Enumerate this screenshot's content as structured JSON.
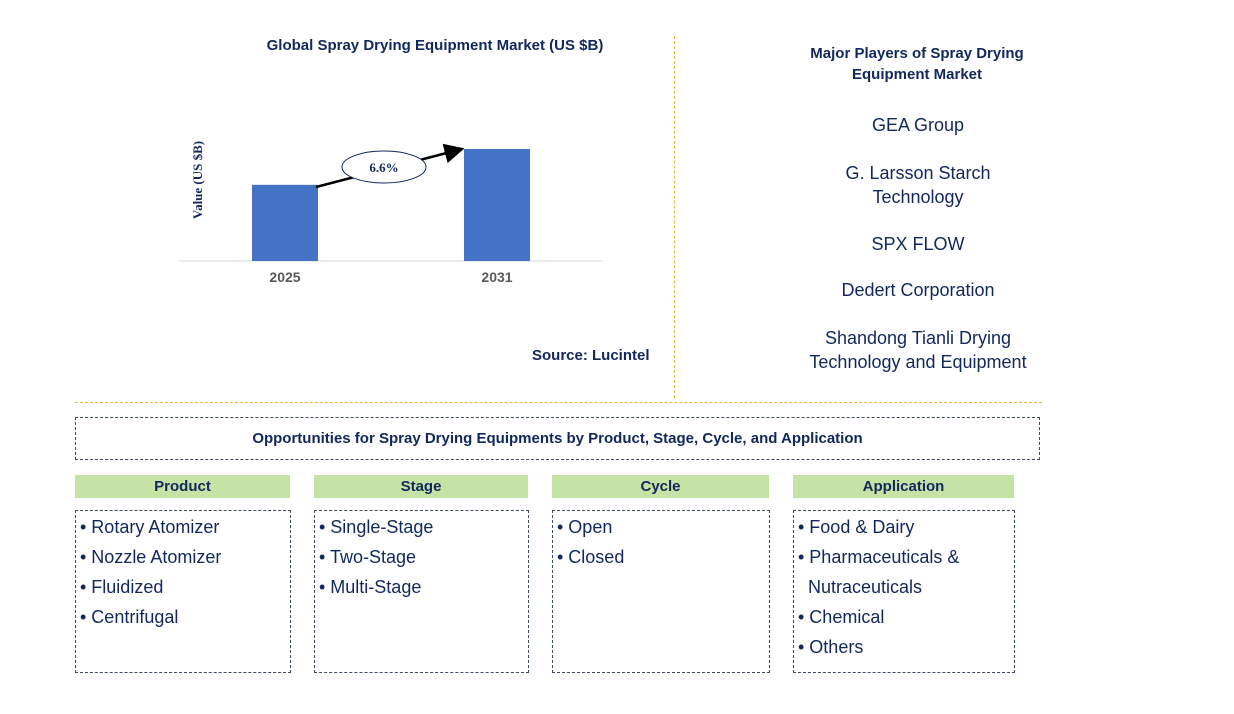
{
  "chart_data": {
    "type": "bar",
    "title": "Global Spray Drying Equipment Market (US $B)",
    "ylabel": "Value (US $B)",
    "categories": [
      "2025",
      "2031"
    ],
    "values": [
      0.68,
      1.0
    ],
    "cagr_label": "6.6%",
    "bar_color": "#4472c4",
    "ylim": [
      0,
      1.0
    ],
    "grid": false
  },
  "source": "Source: Lucintel",
  "players": {
    "title_lines": [
      "Major Players of Spray Drying",
      "Equipment Market"
    ],
    "items": [
      [
        "GEA Group"
      ],
      [
        "G. Larsson Starch",
        "Technology"
      ],
      [
        "SPX FLOW"
      ],
      [
        "Dedert Corporation"
      ],
      [
        "Shandong Tianli Drying",
        "Technology and Equipment"
      ]
    ]
  },
  "opportunities_title": "Opportunities for Spray Drying Equipments by Product, Stage, Cycle, and Application",
  "segments": [
    {
      "title": "Product",
      "items": [
        "• Rotary Atomizer",
        "• Nozzle Atomizer",
        "• Fluidized",
        "• Centrifugal"
      ]
    },
    {
      "title": "Stage",
      "items": [
        "• Single-Stage",
        "• Two-Stage",
        "• Multi-Stage"
      ]
    },
    {
      "title": "Cycle",
      "items": [
        "• Open",
        "• Closed"
      ]
    },
    {
      "title": "Application",
      "items": [
        "• Food & Dairy",
        "• Pharmaceuticals &",
        "Nutraceuticals",
        "• Chemical",
        "• Others"
      ]
    }
  ],
  "colors": {
    "text": "#12275c",
    "bar": "#4472c4",
    "segment_header": "#c6e3a6",
    "divider": "#e2b742"
  }
}
